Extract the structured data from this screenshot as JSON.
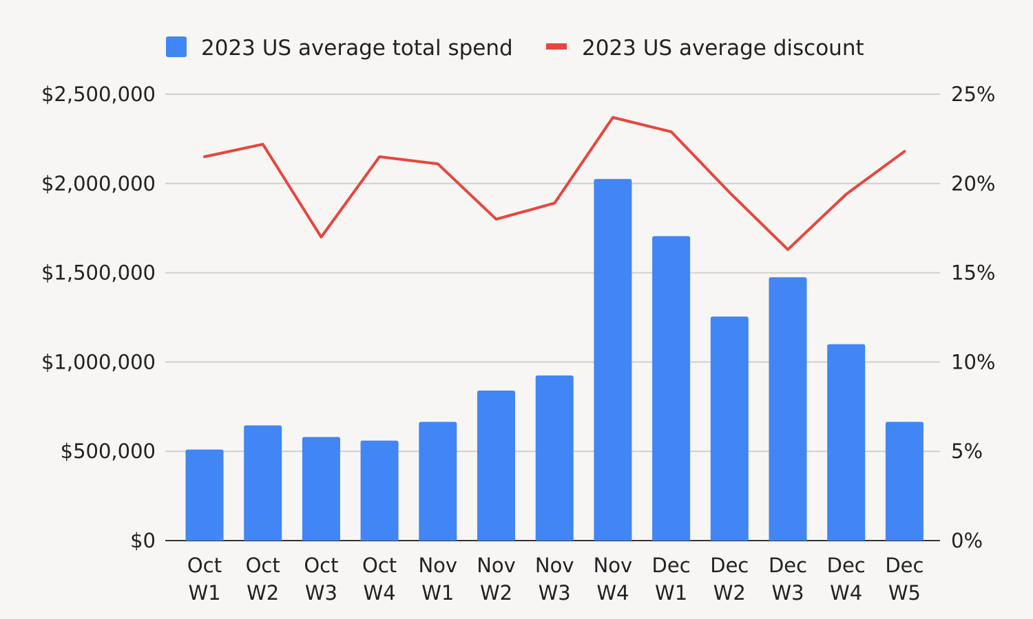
{
  "chart_data": {
    "type": "bar",
    "legend_position": "top",
    "grid": true,
    "categories": [
      [
        "Oct",
        "W1"
      ],
      [
        "Oct",
        "W2"
      ],
      [
        "Oct",
        "W3"
      ],
      [
        "Oct",
        "W4"
      ],
      [
        "Nov",
        "W1"
      ],
      [
        "Nov",
        "W2"
      ],
      [
        "Nov",
        "W3"
      ],
      [
        "Nov",
        "W4"
      ],
      [
        "Dec",
        "W1"
      ],
      [
        "Dec",
        "W2"
      ],
      [
        "Dec",
        "W3"
      ],
      [
        "Dec",
        "W4"
      ],
      [
        "Dec",
        "W5"
      ]
    ],
    "series": [
      {
        "name": "2023 US average total spend",
        "type": "bar",
        "axis": "left",
        "color": "#4285f4",
        "values": [
          510000,
          645000,
          580000,
          560000,
          665000,
          840000,
          925000,
          2025000,
          1705000,
          1255000,
          1475000,
          1100000,
          665000
        ]
      },
      {
        "name": "2023 US average discount",
        "type": "line",
        "axis": "right",
        "color": "#e8453c",
        "values": [
          21.5,
          22.2,
          17.0,
          21.5,
          21.1,
          18.0,
          18.9,
          23.7,
          22.9,
          19.5,
          16.3,
          19.4,
          21.8
        ]
      }
    ],
    "y_left": {
      "range": [
        0,
        2500000
      ],
      "ticks": [
        {
          "value": 0,
          "label": "$0"
        },
        {
          "value": 500000,
          "label": "$500,000"
        },
        {
          "value": 1000000,
          "label": "$1,000,000"
        },
        {
          "value": 1500000,
          "label": "$1,500,000"
        },
        {
          "value": 2000000,
          "label": "$2,000,000"
        },
        {
          "value": 2500000,
          "label": "$2,500,000"
        }
      ]
    },
    "y_right": {
      "range": [
        0,
        25
      ],
      "ticks": [
        {
          "value": 0,
          "label": "0%"
        },
        {
          "value": 5,
          "label": "5%"
        },
        {
          "value": 10,
          "label": "10%"
        },
        {
          "value": 15,
          "label": "15%"
        },
        {
          "value": 20,
          "label": "20%"
        },
        {
          "value": 25,
          "label": "25%"
        }
      ]
    }
  }
}
